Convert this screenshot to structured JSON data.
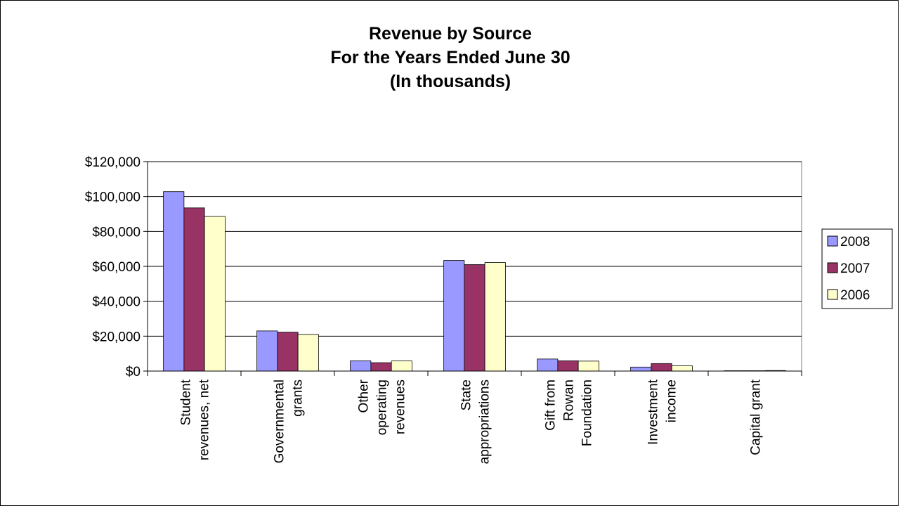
{
  "chart_data": {
    "type": "bar",
    "title": [
      "Revenue by Source",
      "For the Years Ended June 30",
      "(In thousands)"
    ],
    "categories": [
      [
        "Student",
        "revenues, net"
      ],
      [
        "Governmental",
        "grants"
      ],
      [
        "Other",
        "operating",
        "revenues"
      ],
      [
        "State",
        "appropriations"
      ],
      [
        "Gift from",
        "Rowan",
        "Foundation"
      ],
      [
        "Investment",
        "income"
      ],
      [
        "Capital grant"
      ]
    ],
    "series": [
      {
        "name": "2008",
        "color": "#9999ff",
        "values": [
          102800,
          23000,
          5900,
          63400,
          6900,
          2300,
          200
        ]
      },
      {
        "name": "2007",
        "color": "#993366",
        "values": [
          93500,
          22300,
          4800,
          61000,
          5900,
          4300,
          200
        ]
      },
      {
        "name": "2006",
        "color": "#ffffcc",
        "values": [
          88600,
          21000,
          5800,
          62200,
          5700,
          3000,
          300
        ]
      }
    ],
    "yticks": [
      "$0",
      "$20,000",
      "$40,000",
      "$60,000",
      "$80,000",
      "$100,000",
      "$120,000"
    ],
    "ylim": [
      0,
      120000
    ],
    "grid": true,
    "legend_position": "right"
  }
}
